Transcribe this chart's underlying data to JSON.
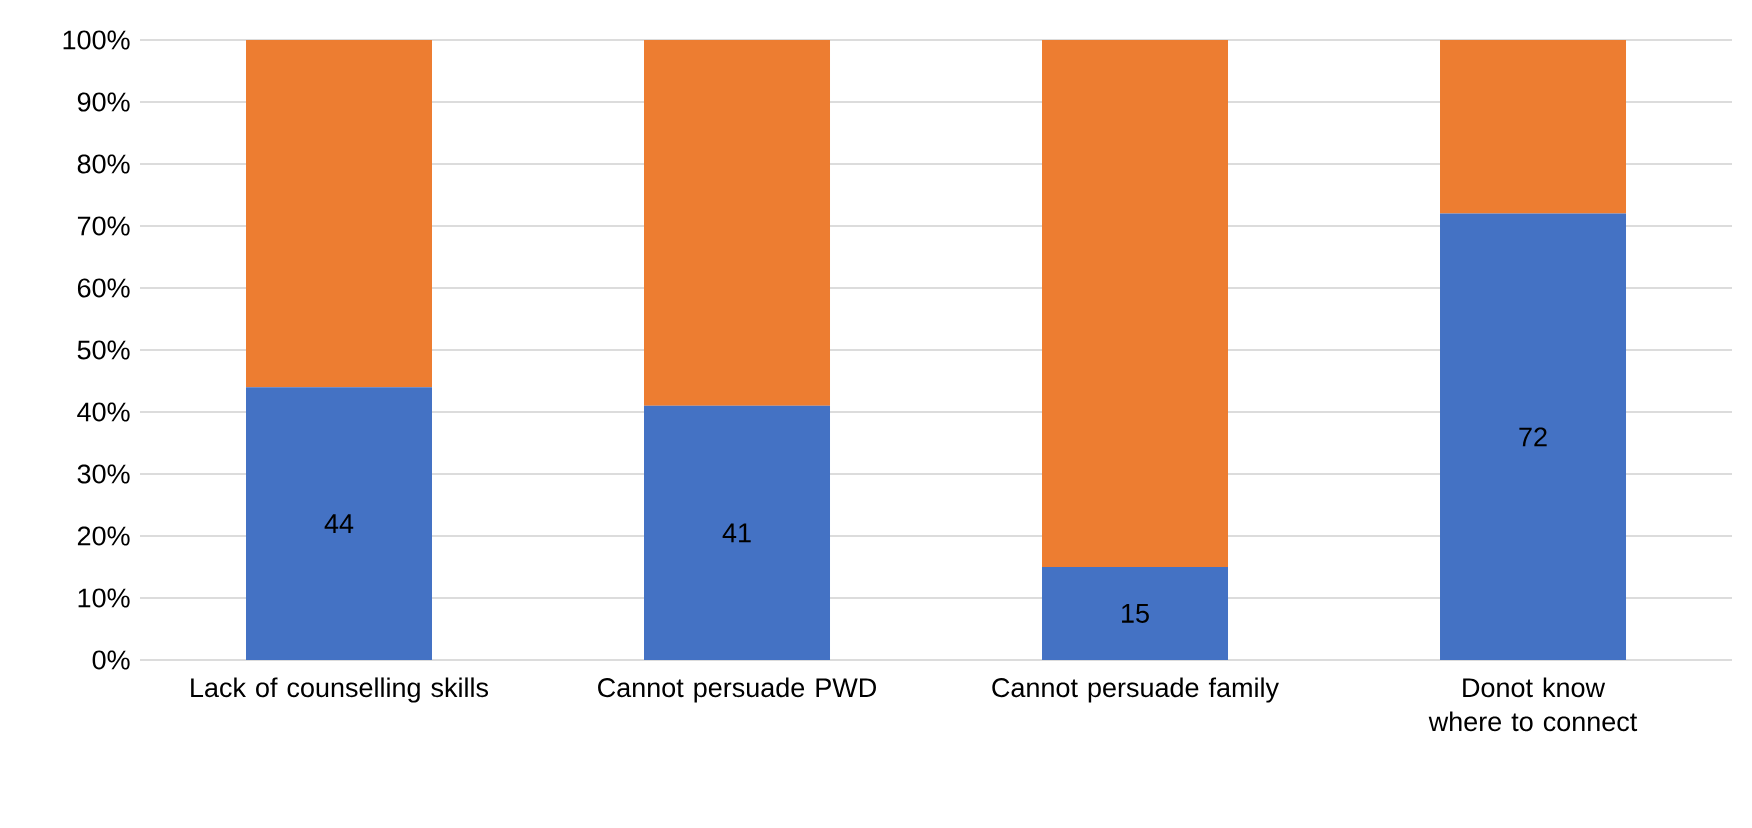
{
  "chart_data": {
    "type": "bar",
    "stacked": true,
    "categories": [
      "Lack of counselling skills",
      "Cannot persuade PWD",
      "Cannot persuade family",
      "Donot know where to connect"
    ],
    "series": [
      {
        "color": "#4472c4",
        "values": [
          44,
          41,
          15,
          72
        ],
        "value_labels": [
          "44",
          "41",
          "15",
          "72"
        ]
      },
      {
        "color": "#ed7d31",
        "values": [
          56,
          59,
          85,
          28
        ]
      }
    ],
    "ylim": [
      0,
      100
    ],
    "yticks": [
      {
        "value": 0,
        "label": "0%"
      },
      {
        "value": 10,
        "label": "10%"
      },
      {
        "value": 20,
        "label": "20%"
      },
      {
        "value": 30,
        "label": "30%"
      },
      {
        "value": 40,
        "label": "40%"
      },
      {
        "value": 50,
        "label": "50%"
      },
      {
        "value": 60,
        "label": "60%"
      },
      {
        "value": 70,
        "label": "70%"
      },
      {
        "value": 80,
        "label": "80%"
      },
      {
        "value": 90,
        "label": "90%"
      },
      {
        "value": 100,
        "label": "100%"
      }
    ],
    "grid": "y"
  }
}
